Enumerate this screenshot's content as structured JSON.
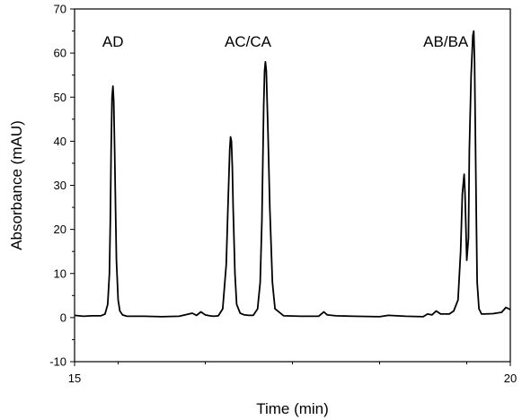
{
  "chart_data": {
    "type": "line",
    "title": "",
    "xlabel": "Time (min)",
    "ylabel": "Absorbance (mAU)",
    "xlim": [
      15,
      20
    ],
    "ylim": [
      -10,
      70
    ],
    "x_ticks": [
      15,
      20
    ],
    "y_ticks": [
      -10,
      0,
      10,
      20,
      30,
      40,
      50,
      60,
      70
    ],
    "grid": false,
    "legend": "none",
    "line_color": "#000000",
    "annotations": [
      {
        "text": "AD",
        "x": 15.44,
        "y": 61.5
      },
      {
        "text": "AC/CA",
        "x": 16.99,
        "y": 61.5
      },
      {
        "text": "AB/BA",
        "x": 19.26,
        "y": 61.5
      }
    ],
    "series": [
      {
        "x": [
          15.0,
          15.1,
          15.2,
          15.3,
          15.35,
          15.38,
          15.4,
          15.41,
          15.42,
          15.43,
          15.44,
          15.45,
          15.46,
          15.47,
          15.48,
          15.5,
          15.52,
          15.55,
          15.6,
          15.8,
          16.0,
          16.2,
          16.35,
          16.4,
          16.45,
          16.5,
          16.55,
          16.6,
          16.65,
          16.7,
          16.74,
          16.76,
          16.78,
          16.79,
          16.8,
          16.81,
          16.82,
          16.84,
          16.86,
          16.9,
          16.95,
          17.0,
          17.05,
          17.1,
          17.13,
          17.15,
          17.16,
          17.17,
          17.18,
          17.19,
          17.2,
          17.22,
          17.24,
          17.27,
          17.3,
          17.4,
          17.6,
          17.8,
          17.86,
          17.9,
          18.0,
          18.2,
          18.5,
          18.6,
          18.8,
          19.0,
          19.05,
          19.1,
          19.15,
          19.2,
          19.3,
          19.35,
          19.4,
          19.43,
          19.45,
          19.47,
          19.48,
          19.5,
          19.52,
          19.53,
          19.55,
          19.57,
          19.58,
          19.59,
          19.6,
          19.61,
          19.62,
          19.64,
          19.67,
          19.7,
          19.8,
          19.9,
          19.95,
          20.0
        ],
        "values": [
          0.5,
          0.3,
          0.4,
          0.4,
          0.8,
          3,
          10,
          22,
          38,
          50,
          52.5,
          49,
          38,
          25,
          13,
          4,
          1.5,
          0.6,
          0.3,
          0.3,
          0.2,
          0.3,
          1.0,
          0.5,
          1.3,
          0.6,
          0.4,
          0.3,
          0.4,
          2,
          12,
          25,
          38,
          41,
          40,
          34,
          25,
          10,
          3,
          1,
          0.6,
          0.5,
          0.5,
          2,
          8,
          22,
          35,
          48,
          56,
          58,
          56,
          42,
          25,
          8,
          2,
          0.4,
          0.3,
          0.3,
          1.3,
          0.6,
          0.4,
          0.3,
          0.2,
          0.5,
          0.3,
          0.2,
          0.8,
          0.6,
          1.5,
          0.8,
          0.8,
          1.5,
          4,
          15,
          28,
          32.5,
          28,
          13,
          18,
          38,
          55,
          64,
          65,
          58,
          40,
          22,
          8,
          2,
          0.8,
          0.8,
          0.9,
          1.2,
          2.3,
          1.8
        ]
      }
    ]
  }
}
